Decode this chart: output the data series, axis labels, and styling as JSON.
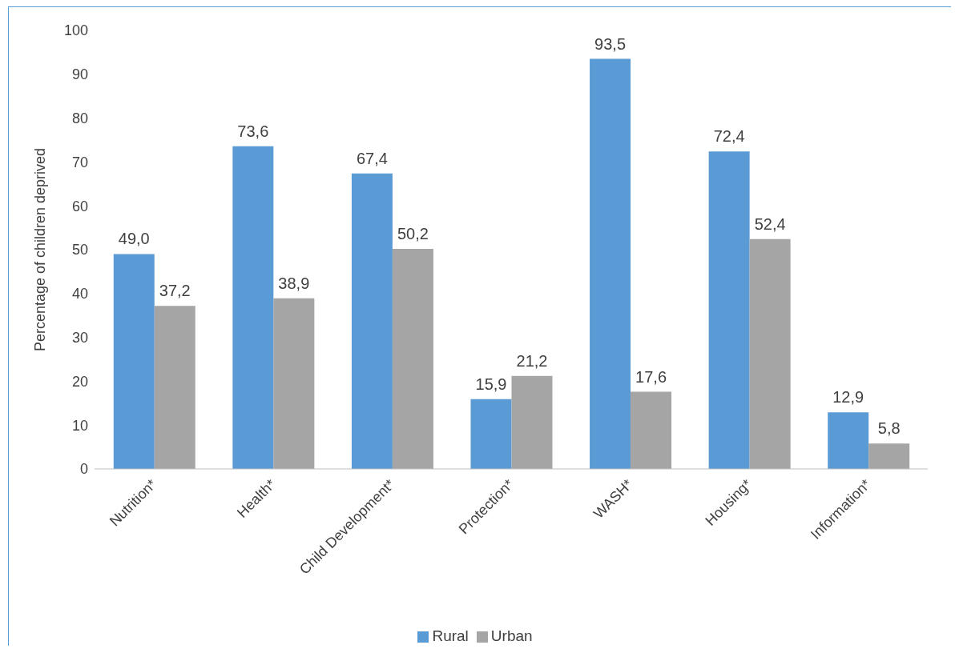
{
  "chart_data": {
    "type": "bar",
    "ylabel": "Percentage of children deprived",
    "categories": [
      "Nutrition*",
      "Health*",
      "Child Development*",
      "Protection*",
      "WASH*",
      "Housing*",
      "Information*"
    ],
    "series": [
      {
        "name": "Rural",
        "color": "#5b9bd5",
        "values": [
          49.0,
          73.6,
          67.4,
          15.9,
          93.5,
          72.4,
          12.9
        ],
        "value_labels": [
          "49,0",
          "73,6",
          "67,4",
          "15,9",
          "93,5",
          "72,4",
          "12,9"
        ]
      },
      {
        "name": "Urban",
        "color": "#a5a5a5",
        "values": [
          37.2,
          38.9,
          50.2,
          21.2,
          17.6,
          52.4,
          5.8
        ],
        "value_labels": [
          "37,2",
          "38,9",
          "50,2",
          "21,2",
          "17,6",
          "52,4",
          "5,8"
        ]
      }
    ],
    "ylim": [
      0,
      100
    ],
    "yticks": [
      0,
      10,
      20,
      30,
      40,
      50,
      60,
      70,
      80,
      90,
      100
    ],
    "grid": false,
    "legend": "bottom"
  }
}
